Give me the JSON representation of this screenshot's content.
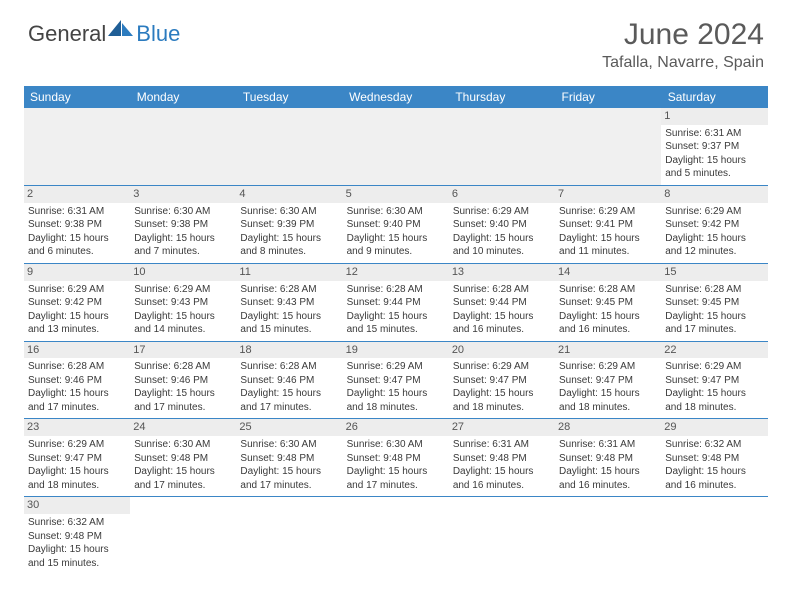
{
  "brand": {
    "part1": "General",
    "part2": "Blue"
  },
  "title": "June 2024",
  "location": "Tafalla, Navarre, Spain",
  "colors": {
    "header_bg": "#3b86c6",
    "header_text": "#ffffff",
    "daynum_bg": "#ededed",
    "text": "#3a3a3a",
    "title_color": "#5a5a5a",
    "brand_blue": "#2b7bbf"
  },
  "fonts": {
    "title_size": 30,
    "location_size": 16,
    "header_size": 12,
    "cell_size": 10
  },
  "weekdays": [
    "Sunday",
    "Monday",
    "Tuesday",
    "Wednesday",
    "Thursday",
    "Friday",
    "Saturday"
  ],
  "weeks": [
    [
      null,
      null,
      null,
      null,
      null,
      null,
      {
        "d": "1",
        "sr": "Sunrise: 6:31 AM",
        "ss": "Sunset: 9:37 PM",
        "dl1": "Daylight: 15 hours",
        "dl2": "and 5 minutes."
      }
    ],
    [
      {
        "d": "2",
        "sr": "Sunrise: 6:31 AM",
        "ss": "Sunset: 9:38 PM",
        "dl1": "Daylight: 15 hours",
        "dl2": "and 6 minutes."
      },
      {
        "d": "3",
        "sr": "Sunrise: 6:30 AM",
        "ss": "Sunset: 9:38 PM",
        "dl1": "Daylight: 15 hours",
        "dl2": "and 7 minutes."
      },
      {
        "d": "4",
        "sr": "Sunrise: 6:30 AM",
        "ss": "Sunset: 9:39 PM",
        "dl1": "Daylight: 15 hours",
        "dl2": "and 8 minutes."
      },
      {
        "d": "5",
        "sr": "Sunrise: 6:30 AM",
        "ss": "Sunset: 9:40 PM",
        "dl1": "Daylight: 15 hours",
        "dl2": "and 9 minutes."
      },
      {
        "d": "6",
        "sr": "Sunrise: 6:29 AM",
        "ss": "Sunset: 9:40 PM",
        "dl1": "Daylight: 15 hours",
        "dl2": "and 10 minutes."
      },
      {
        "d": "7",
        "sr": "Sunrise: 6:29 AM",
        "ss": "Sunset: 9:41 PM",
        "dl1": "Daylight: 15 hours",
        "dl2": "and 11 minutes."
      },
      {
        "d": "8",
        "sr": "Sunrise: 6:29 AM",
        "ss": "Sunset: 9:42 PM",
        "dl1": "Daylight: 15 hours",
        "dl2": "and 12 minutes."
      }
    ],
    [
      {
        "d": "9",
        "sr": "Sunrise: 6:29 AM",
        "ss": "Sunset: 9:42 PM",
        "dl1": "Daylight: 15 hours",
        "dl2": "and 13 minutes."
      },
      {
        "d": "10",
        "sr": "Sunrise: 6:29 AM",
        "ss": "Sunset: 9:43 PM",
        "dl1": "Daylight: 15 hours",
        "dl2": "and 14 minutes."
      },
      {
        "d": "11",
        "sr": "Sunrise: 6:28 AM",
        "ss": "Sunset: 9:43 PM",
        "dl1": "Daylight: 15 hours",
        "dl2": "and 15 minutes."
      },
      {
        "d": "12",
        "sr": "Sunrise: 6:28 AM",
        "ss": "Sunset: 9:44 PM",
        "dl1": "Daylight: 15 hours",
        "dl2": "and 15 minutes."
      },
      {
        "d": "13",
        "sr": "Sunrise: 6:28 AM",
        "ss": "Sunset: 9:44 PM",
        "dl1": "Daylight: 15 hours",
        "dl2": "and 16 minutes."
      },
      {
        "d": "14",
        "sr": "Sunrise: 6:28 AM",
        "ss": "Sunset: 9:45 PM",
        "dl1": "Daylight: 15 hours",
        "dl2": "and 16 minutes."
      },
      {
        "d": "15",
        "sr": "Sunrise: 6:28 AM",
        "ss": "Sunset: 9:45 PM",
        "dl1": "Daylight: 15 hours",
        "dl2": "and 17 minutes."
      }
    ],
    [
      {
        "d": "16",
        "sr": "Sunrise: 6:28 AM",
        "ss": "Sunset: 9:46 PM",
        "dl1": "Daylight: 15 hours",
        "dl2": "and 17 minutes."
      },
      {
        "d": "17",
        "sr": "Sunrise: 6:28 AM",
        "ss": "Sunset: 9:46 PM",
        "dl1": "Daylight: 15 hours",
        "dl2": "and 17 minutes."
      },
      {
        "d": "18",
        "sr": "Sunrise: 6:28 AM",
        "ss": "Sunset: 9:46 PM",
        "dl1": "Daylight: 15 hours",
        "dl2": "and 17 minutes."
      },
      {
        "d": "19",
        "sr": "Sunrise: 6:29 AM",
        "ss": "Sunset: 9:47 PM",
        "dl1": "Daylight: 15 hours",
        "dl2": "and 18 minutes."
      },
      {
        "d": "20",
        "sr": "Sunrise: 6:29 AM",
        "ss": "Sunset: 9:47 PM",
        "dl1": "Daylight: 15 hours",
        "dl2": "and 18 minutes."
      },
      {
        "d": "21",
        "sr": "Sunrise: 6:29 AM",
        "ss": "Sunset: 9:47 PM",
        "dl1": "Daylight: 15 hours",
        "dl2": "and 18 minutes."
      },
      {
        "d": "22",
        "sr": "Sunrise: 6:29 AM",
        "ss": "Sunset: 9:47 PM",
        "dl1": "Daylight: 15 hours",
        "dl2": "and 18 minutes."
      }
    ],
    [
      {
        "d": "23",
        "sr": "Sunrise: 6:29 AM",
        "ss": "Sunset: 9:47 PM",
        "dl1": "Daylight: 15 hours",
        "dl2": "and 18 minutes."
      },
      {
        "d": "24",
        "sr": "Sunrise: 6:30 AM",
        "ss": "Sunset: 9:48 PM",
        "dl1": "Daylight: 15 hours",
        "dl2": "and 17 minutes."
      },
      {
        "d": "25",
        "sr": "Sunrise: 6:30 AM",
        "ss": "Sunset: 9:48 PM",
        "dl1": "Daylight: 15 hours",
        "dl2": "and 17 minutes."
      },
      {
        "d": "26",
        "sr": "Sunrise: 6:30 AM",
        "ss": "Sunset: 9:48 PM",
        "dl1": "Daylight: 15 hours",
        "dl2": "and 17 minutes."
      },
      {
        "d": "27",
        "sr": "Sunrise: 6:31 AM",
        "ss": "Sunset: 9:48 PM",
        "dl1": "Daylight: 15 hours",
        "dl2": "and 16 minutes."
      },
      {
        "d": "28",
        "sr": "Sunrise: 6:31 AM",
        "ss": "Sunset: 9:48 PM",
        "dl1": "Daylight: 15 hours",
        "dl2": "and 16 minutes."
      },
      {
        "d": "29",
        "sr": "Sunrise: 6:32 AM",
        "ss": "Sunset: 9:48 PM",
        "dl1": "Daylight: 15 hours",
        "dl2": "and 16 minutes."
      }
    ],
    [
      {
        "d": "30",
        "sr": "Sunrise: 6:32 AM",
        "ss": "Sunset: 9:48 PM",
        "dl1": "Daylight: 15 hours",
        "dl2": "and 15 minutes."
      },
      null,
      null,
      null,
      null,
      null,
      null
    ]
  ]
}
